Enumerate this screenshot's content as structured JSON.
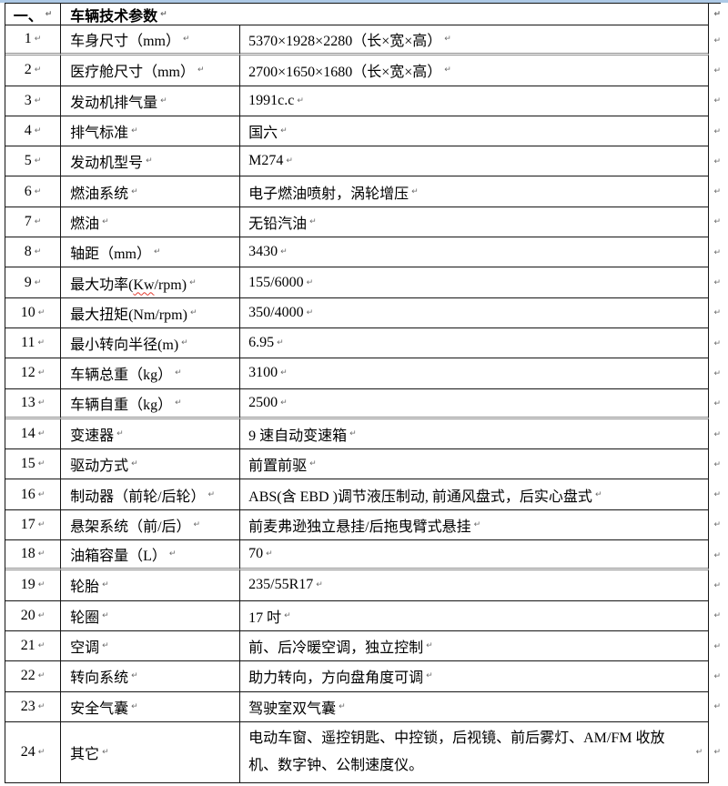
{
  "colors": {
    "top_strip": "#adc9e6",
    "spellcheck_underline": "#e23b2e",
    "border": "#151515"
  },
  "marks": {
    "cell": "↵",
    "row_end": "↵"
  },
  "header": {
    "index": "一、",
    "title": "车辆技术参数"
  },
  "table": {
    "rows": [
      {
        "num": "1",
        "label": "车身尺寸（mm）",
        "value": "5370×1928×2280（长×宽×高）",
        "sep_after": true
      },
      {
        "num": "2",
        "label": "医疗舱尺寸（mm）",
        "value": "2700×1650×1680（长×宽×高）"
      },
      {
        "num": "3",
        "label": "发动机排气量",
        "value": "1991c.c"
      },
      {
        "num": "4",
        "label": "排气标准",
        "value": "国六"
      },
      {
        "num": "5",
        "label": "发动机型号",
        "value": "M274"
      },
      {
        "num": "6",
        "label": "燃油系统",
        "value": "电子燃油喷射，涡轮增压"
      },
      {
        "num": "7",
        "label": "燃油",
        "value": "无铅汽油"
      },
      {
        "num": "8",
        "label": "轴距（mm）",
        "value": "3430"
      },
      {
        "num": "9",
        "label": "最大功率(Kw/rpm)",
        "misspelled": "Kw",
        "value": "155/6000"
      },
      {
        "num": "10",
        "label": "最大扭矩(Nm/rpm)",
        "value": "350/4000"
      },
      {
        "num": "11",
        "label": "最小转向半径(m)",
        "value": "6.95"
      },
      {
        "num": "12",
        "label": "车辆总重（kg）",
        "value": "3100"
      },
      {
        "num": "13",
        "label": "车辆自重（kg）",
        "value": "2500",
        "sep_after": true
      },
      {
        "num": "14",
        "label": "变速器",
        "value": "9 速自动变速箱"
      },
      {
        "num": "15",
        "label": "驱动方式",
        "value": "前置前驱"
      },
      {
        "num": "16",
        "label": "制动器（前轮/后轮）",
        "value": "ABS(含 EBD )调节液压制动, 前通风盘式，后实心盘式"
      },
      {
        "num": "17",
        "label": "悬架系统（前/后）",
        "value": "前麦弗逊独立悬挂/后拖曳臂式悬挂"
      },
      {
        "num": "18",
        "label": "油箱容量（L）",
        "value": "70",
        "sep_after": true
      },
      {
        "num": "19",
        "label": "轮胎",
        "value": "235/55R17"
      },
      {
        "num": "20",
        "label": "轮圈",
        "value": "17 吋"
      },
      {
        "num": "21",
        "label": "空调",
        "value": "前、后冷暖空调，独立控制"
      },
      {
        "num": "22",
        "label": "转向系统",
        "value": "助力转向，方向盘角度可调"
      },
      {
        "num": "23",
        "label": "安全气囊",
        "value": "驾驶室双气囊"
      },
      {
        "num": "24",
        "label": "其它",
        "value": "电动车窗、遥控钥匙、中控锁，后视镜、前后雾灯、AM/FM 收放机、数字钟、公制速度仪。",
        "tall": true
      }
    ]
  }
}
